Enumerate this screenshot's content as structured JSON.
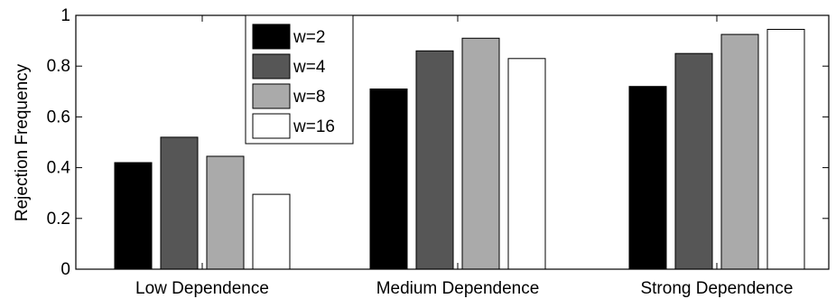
{
  "chart_data": {
    "type": "bar",
    "categories": [
      "Low Dependence",
      "Medium Dependence",
      "Strong Dependence"
    ],
    "series": [
      {
        "name": "w=2",
        "color": "#000000",
        "values": [
          0.42,
          0.71,
          0.72
        ]
      },
      {
        "name": "w=4",
        "color": "#565656",
        "values": [
          0.52,
          0.86,
          0.85
        ]
      },
      {
        "name": "w=8",
        "color": "#aaaaaa",
        "values": [
          0.445,
          0.91,
          0.925
        ]
      },
      {
        "name": "w=16",
        "color": "#ffffff",
        "values": [
          0.295,
          0.83,
          0.945
        ]
      }
    ],
    "ylabel": "Rejection Frequency",
    "xlabel": "",
    "title": "",
    "ylim": [
      0,
      1
    ],
    "yticks": [
      {
        "value": 0,
        "label": "0"
      },
      {
        "value": 0.2,
        "label": "0.2"
      },
      {
        "value": 0.4,
        "label": "0.4"
      },
      {
        "value": 0.6,
        "label": "0.6"
      },
      {
        "value": 0.8,
        "label": "0.8"
      },
      {
        "value": 1,
        "label": "1"
      }
    ],
    "legend_position": "top-left-center",
    "grid": false
  }
}
